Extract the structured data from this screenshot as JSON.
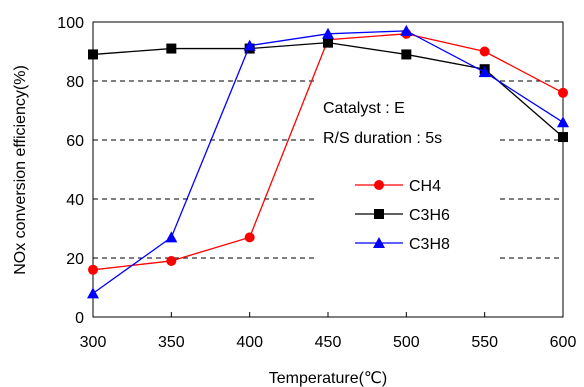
{
  "chart_data": {
    "type": "line",
    "title": "",
    "xlabel": "Temperature(℃)",
    "ylabel": "NOx conversion efficiency(%)",
    "xlim": [
      300,
      600
    ],
    "ylim": [
      0,
      100
    ],
    "xticks": [
      300,
      350,
      400,
      450,
      500,
      550,
      600
    ],
    "yticks": [
      0,
      20,
      40,
      60,
      80,
      100
    ],
    "grid": "dashed horizontal",
    "legend_position": "right",
    "annotations": [
      "Catalyst : E",
      "R/S duration : 5s"
    ],
    "series": [
      {
        "name": "CH4",
        "color": "#ff0000",
        "marker": "circle",
        "x": [
          300,
          350,
          400,
          450,
          500,
          550,
          600
        ],
        "y": [
          16,
          19,
          27,
          94,
          96,
          90,
          76
        ]
      },
      {
        "name": "C3H6",
        "color": "#000000",
        "marker": "square",
        "x": [
          300,
          350,
          400,
          450,
          500,
          550,
          600
        ],
        "y": [
          89,
          91,
          91,
          93,
          89,
          84,
          61
        ]
      },
      {
        "name": "C3H8",
        "color": "#0000ff",
        "marker": "triangle",
        "x": [
          300,
          350,
          400,
          450,
          500,
          550,
          600
        ],
        "y": [
          8,
          27,
          92,
          96,
          97,
          83,
          66
        ]
      }
    ]
  }
}
